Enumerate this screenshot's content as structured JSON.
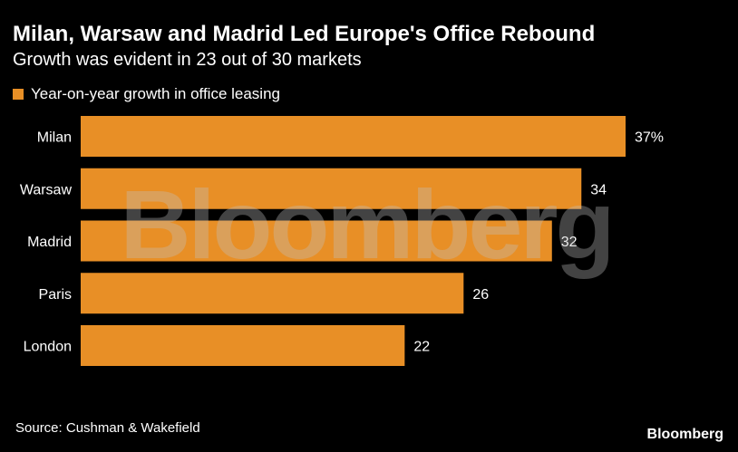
{
  "header": {
    "title": "Milan, Warsaw and Madrid Led Europe's Office Rebound",
    "subtitle": "Growth was evident in 23 out of 30 markets"
  },
  "footer": {
    "source": "Source: Cushman & Wakefield",
    "brand": "Bloomberg"
  },
  "watermark": "Bloomberg",
  "colors": {
    "background": "#000000",
    "bar": "#e88f26",
    "text": "#ffffff"
  },
  "chart_data": {
    "type": "bar",
    "orientation": "horizontal",
    "categories": [
      "Milan",
      "Warsaw",
      "Madrid",
      "Paris",
      "London"
    ],
    "series": [
      {
        "name": "Year-on-year growth in office leasing",
        "values": [
          37,
          34,
          32,
          26,
          22
        ]
      }
    ],
    "value_labels": [
      "37%",
      "34",
      "32",
      "26",
      "22"
    ],
    "title": "Milan, Warsaw and Madrid Led Europe's Office Rebound",
    "subtitle": "Growth was evident in 23 out of 30 markets",
    "xlim": [
      0,
      37
    ],
    "legend": "top-left",
    "grid": false
  }
}
